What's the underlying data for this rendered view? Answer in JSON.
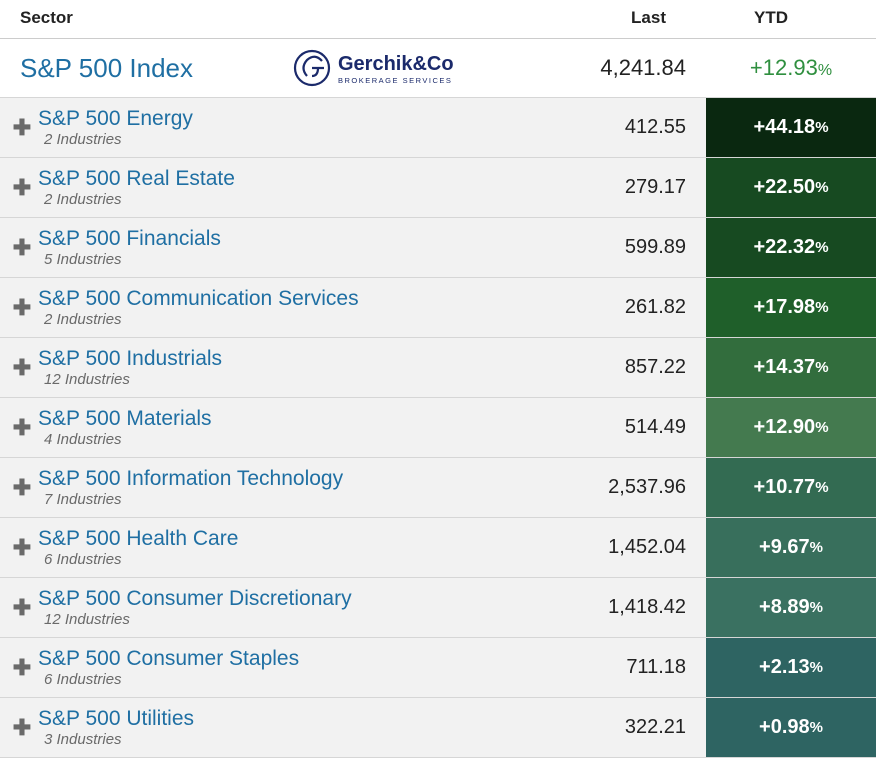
{
  "header": {
    "sector": "Sector",
    "last": "Last",
    "ytd": "YTD"
  },
  "index": {
    "name": "S&P 500 Index",
    "last": "4,241.84",
    "ytd": "+12.93",
    "ytd_color": "#2f8f3f",
    "logo_primary": "Gerchik&Co",
    "logo_sub": "BROKERAGE SERVICES"
  },
  "logo_color": "#1b2a6b",
  "sectors": [
    {
      "name": "S&P 500 Energy",
      "industries": "2 Industries",
      "last": "412.55",
      "ytd": "+44.18",
      "bg": "#0a2810"
    },
    {
      "name": "S&P 500 Real Estate",
      "industries": "2 Industries",
      "last": "279.17",
      "ytd": "+22.50",
      "bg": "#174a21"
    },
    {
      "name": "S&P 500 Financials",
      "industries": "5 Industries",
      "last": "599.89",
      "ytd": "+22.32",
      "bg": "#174a21"
    },
    {
      "name": "S&P 500 Communication Services",
      "industries": "2 Industries",
      "last": "261.82",
      "ytd": "+17.98",
      "bg": "#1f5f2a"
    },
    {
      "name": "S&P 500 Industrials",
      "industries": "12 Industries",
      "last": "857.22",
      "ytd": "+14.37",
      "bg": "#326d3d"
    },
    {
      "name": "S&P 500 Materials",
      "industries": "4 Industries",
      "last": "514.49",
      "ytd": "+12.90",
      "bg": "#447a4f"
    },
    {
      "name": "S&P 500 Information Technology",
      "industries": "7 Industries",
      "last": "2,537.96",
      "ytd": "+10.77",
      "bg": "#336b52"
    },
    {
      "name": "S&P 500 Health Care",
      "industries": "6 Industries",
      "last": "1,452.04",
      "ytd": "+9.67",
      "bg": "#386f5c"
    },
    {
      "name": "S&P 500 Consumer Discretionary",
      "industries": "12 Industries",
      "last": "1,418.42",
      "ytd": "+8.89",
      "bg": "#3a7161"
    },
    {
      "name": "S&P 500 Consumer Staples",
      "industries": "6 Industries",
      "last": "711.18",
      "ytd": "+2.13",
      "bg": "#2e6462"
    },
    {
      "name": "S&P 500 Utilities",
      "industries": "3 Industries",
      "last": "322.21",
      "ytd": "+0.98",
      "bg": "#2e6462"
    }
  ]
}
